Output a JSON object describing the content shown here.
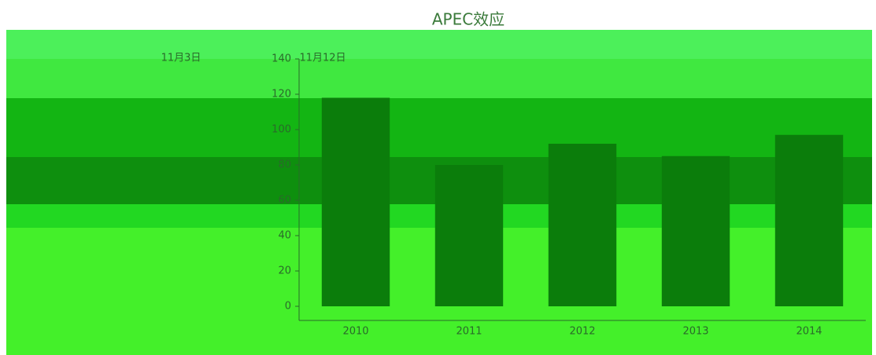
{
  "chart_data": {
    "type": "bar",
    "title": "APEC效应",
    "annotations": [
      "11月3日",
      "11月12日"
    ],
    "categories": [
      "2010",
      "2011",
      "2012",
      "2013",
      "2014"
    ],
    "values": [
      118,
      80,
      92,
      85,
      97
    ],
    "color": "#0b7d0b",
    "ylim": [
      0,
      140
    ],
    "yticks": [
      0,
      20,
      40,
      60,
      80,
      100,
      120,
      140
    ],
    "grid": false
  }
}
